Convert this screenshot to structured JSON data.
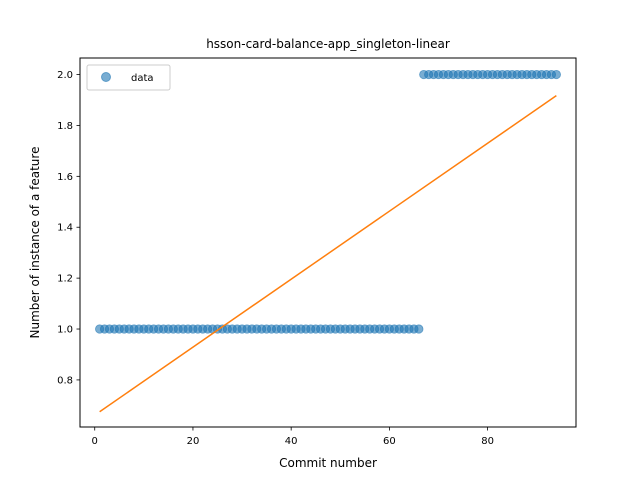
{
  "chart_data": {
    "type": "scatter",
    "title": "hsson-card-balance-app_singleton-linear",
    "xlabel": "Commit number",
    "ylabel": "Number of instance of a feature",
    "xlim": [
      -3,
      98
    ],
    "ylim": [
      0.615,
      2.065
    ],
    "xticks": [
      0,
      20,
      40,
      60,
      80
    ],
    "xtick_labels": [
      "0",
      "20",
      "40",
      "60",
      "80"
    ],
    "yticks": [
      0.8,
      1.0,
      1.2,
      1.4,
      1.6,
      1.8,
      2.0
    ],
    "ytick_labels": [
      "0.8",
      "1.0",
      "1.2",
      "1.4",
      "1.6",
      "1.8",
      "2.0"
    ],
    "grid": false,
    "legend": {
      "position": "upper-left",
      "entries": [
        "data"
      ]
    },
    "series": [
      {
        "name": "data",
        "kind": "scatter",
        "color": "#1f77b4",
        "opacity": 0.6,
        "segments": [
          {
            "x_start": 1,
            "x_end": 66,
            "y": 1.0
          },
          {
            "x_start": 67,
            "x_end": 94,
            "y": 2.0
          }
        ]
      },
      {
        "kind": "line",
        "color": "#ff7f0e",
        "x": [
          1,
          94
        ],
        "y": [
          0.675,
          1.917
        ]
      }
    ]
  }
}
